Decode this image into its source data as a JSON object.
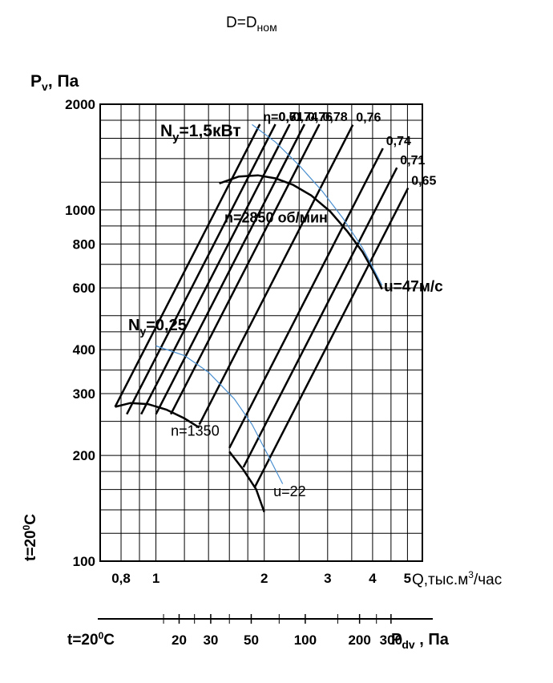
{
  "chart_data": {
    "type": "line",
    "header_main": "D=D",
    "header_sub": "ном",
    "y_axis": {
      "label_main": "P",
      "label_sub": "v",
      "label_rest": ", Па",
      "scale": "log",
      "range": [
        100,
        2000
      ],
      "ticks": [
        {
          "v": 100,
          "t": "100"
        },
        {
          "v": 200,
          "t": "200"
        },
        {
          "v": 300,
          "t": "300"
        },
        {
          "v": 400,
          "t": "400"
        },
        {
          "v": 600,
          "t": "600"
        },
        {
          "v": 800,
          "t": "800"
        },
        {
          "v": 1000,
          "t": "1000"
        },
        {
          "v": 2000,
          "t": "2000"
        }
      ]
    },
    "x_axis": {
      "label_main": "Q,тыс.м",
      "label_sup": "3",
      "label_rest": "/час",
      "scale": "log",
      "range": [
        0.7,
        5.5
      ],
      "ticks": [
        {
          "v": 0.8,
          "t": "0,8"
        },
        {
          "v": 1,
          "t": "1"
        },
        {
          "v": 2,
          "t": "2"
        },
        {
          "v": 3,
          "t": "3"
        },
        {
          "v": 4,
          "t": "4"
        },
        {
          "v": 5,
          "t": "5"
        }
      ]
    },
    "temperature_label": {
      "main": "t=20",
      "sup": "0",
      "rest": "C"
    },
    "dynamic_axis": {
      "label_main": "P",
      "label_sub": "dv",
      "label_rest": " , Па",
      "ticks": [
        {
          "q": 1.16,
          "t": "20"
        },
        {
          "q": 1.42,
          "t": "30"
        },
        {
          "q": 1.84,
          "t": "50"
        },
        {
          "q": 2.6,
          "t": "100"
        },
        {
          "q": 3.68,
          "t": "200"
        },
        {
          "q": 4.5,
          "t": "300"
        }
      ]
    },
    "speed_curves": [
      {
        "label": "n=2850 об/мин",
        "points": [
          [
            1.5,
            1190
          ],
          [
            1.7,
            1245
          ],
          [
            1.92,
            1255
          ],
          [
            2.15,
            1230
          ],
          [
            2.4,
            1180
          ],
          [
            2.7,
            1100
          ],
          [
            3.05,
            990
          ],
          [
            3.4,
            870
          ],
          [
            3.75,
            760
          ],
          [
            4.05,
            660
          ],
          [
            4.25,
            595
          ]
        ]
      },
      {
        "label": "n=1350",
        "points": [
          [
            0.77,
            275
          ],
          [
            0.85,
            282
          ],
          [
            0.95,
            280
          ],
          [
            1.07,
            270
          ],
          [
            1.2,
            255
          ],
          [
            1.32,
            240
          ]
        ]
      },
      {
        "label": "",
        "points": [
          [
            1.6,
            205
          ],
          [
            1.75,
            182
          ],
          [
            1.9,
            160
          ],
          [
            2.0,
            138
          ]
        ]
      }
    ],
    "efficiency_lines": [
      {
        "label": "η=0,61",
        "q": 0.77,
        "p": 275
      },
      {
        "label": "0,71",
        "q": 0.83,
        "p": 262
      },
      {
        "label": "0,74",
        "q": 0.91,
        "p": 262
      },
      {
        "label": "0,76",
        "q": 1.0,
        "p": 262
      },
      {
        "label": "0,78",
        "q": 1.1,
        "p": 262
      },
      {
        "label": "0,76",
        "q": 1.32,
        "p": 245
      },
      {
        "label": "0,74",
        "q": 1.6,
        "p": 210
      },
      {
        "label": "0,71",
        "q": 1.75,
        "p": 185
      },
      {
        "label": "0,65",
        "q": 1.88,
        "p": 162
      }
    ],
    "power_labels": [
      {
        "main": "N",
        "sub": "y",
        "rest": "=1,5кВт"
      },
      {
        "main": "N",
        "sub": "y",
        "rest": "=0,25"
      }
    ],
    "tip_speed_curves": [
      {
        "label": "u=47м/с",
        "points": [
          [
            1.85,
            1750
          ],
          [
            2.15,
            1560
          ],
          [
            2.5,
            1340
          ],
          [
            2.9,
            1130
          ],
          [
            3.3,
            950
          ],
          [
            3.75,
            780
          ],
          [
            4.25,
            610
          ]
        ]
      },
      {
        "label": "u=22",
        "points": [
          [
            1.0,
            410
          ],
          [
            1.2,
            385
          ],
          [
            1.4,
            345
          ],
          [
            1.65,
            290
          ],
          [
            1.85,
            245
          ],
          [
            2.05,
            200
          ],
          [
            2.25,
            166
          ]
        ]
      }
    ],
    "colors": {
      "grid": "#000000",
      "curves": "#000000",
      "tip_speed": "#4a8fd0"
    }
  }
}
